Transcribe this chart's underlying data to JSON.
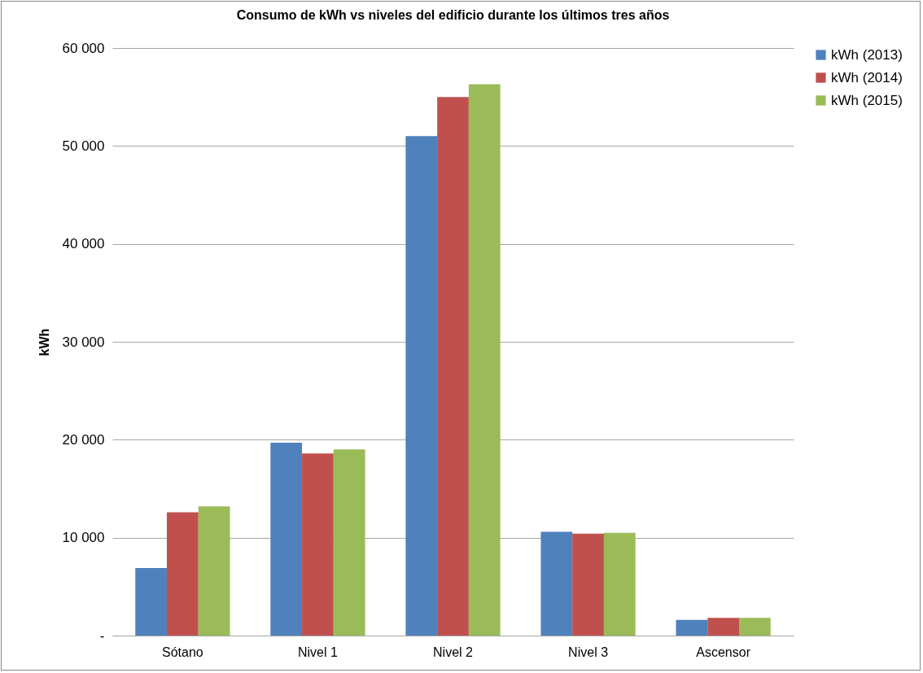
{
  "chart_data": {
    "type": "bar",
    "title": "Consumo de kWh vs niveles del edificio durante los últimos tres años",
    "ylabel": "kWh",
    "categories": [
      "Sótano",
      "Nivel 1",
      "Nivel 2",
      "Nivel 3",
      "Ascensor"
    ],
    "series": [
      {
        "name": "kWh (2013)",
        "color": "#4f81bd",
        "values": [
          6900,
          19700,
          51000,
          10600,
          1600
        ]
      },
      {
        "name": "kWh (2014)",
        "color": "#c0504d",
        "values": [
          12600,
          18600,
          55000,
          10400,
          1800
        ]
      },
      {
        "name": "kWh (2015)",
        "color": "#9bbb59",
        "values": [
          13200,
          19000,
          56300,
          10500,
          1800
        ]
      }
    ],
    "ylim": [
      0,
      60000
    ],
    "yticks": [
      {
        "value": 0,
        "label": "-"
      },
      {
        "value": 10000,
        "label": "10 000"
      },
      {
        "value": 20000,
        "label": "20 000"
      },
      {
        "value": 30000,
        "label": "30 000"
      },
      {
        "value": 40000,
        "label": "40 000"
      },
      {
        "value": 50000,
        "label": "50 000"
      },
      {
        "value": 60000,
        "label": "60 000"
      }
    ],
    "grid": "y",
    "legend": "right"
  }
}
